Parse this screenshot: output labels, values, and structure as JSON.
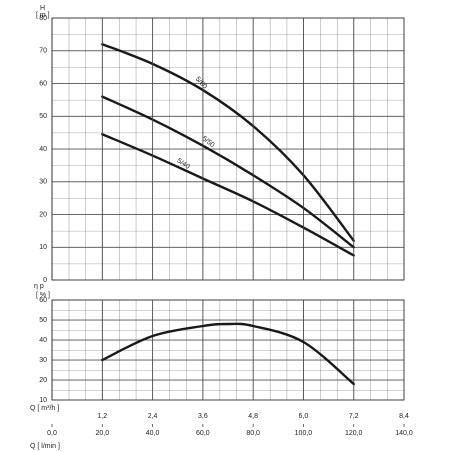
{
  "chart_data": [
    {
      "type": "line",
      "ylabel": "H",
      "yunit": "[ m ]",
      "x": [
        1.2,
        2.4,
        3.6,
        4.8,
        6.0,
        7.2
      ],
      "xlim": [
        0,
        8.4
      ],
      "ylim": [
        0,
        80
      ],
      "yticks": [
        0,
        10,
        20,
        30,
        40,
        50,
        60,
        70,
        80
      ],
      "series": [
        {
          "name": "5/60",
          "color": "#1a1a1a",
          "values": [
            72,
            66,
            58,
            47,
            32,
            12
          ]
        },
        {
          "name": "5/50",
          "color": "#1a1a1a",
          "values": [
            56,
            49,
            41,
            32,
            22,
            10
          ]
        },
        {
          "name": "5/40",
          "color": "#1a1a1a",
          "values": [
            44.5,
            38,
            31,
            24,
            16,
            7.5
          ]
        }
      ]
    },
    {
      "type": "line",
      "ylabel": "η p",
      "yunit": "[ % ]",
      "x": [
        1.2,
        2.4,
        3.6,
        4.2,
        4.8,
        6.0,
        7.2
      ],
      "xlim": [
        0,
        8.4
      ],
      "ylim": [
        10,
        60
      ],
      "yticks": [
        10,
        20,
        30,
        40,
        50,
        60
      ],
      "series": [
        {
          "color": "#1a1a1a",
          "values": [
            30,
            42,
            47,
            48,
            47,
            39,
            18
          ]
        }
      ],
      "xlabel": "Q [ m³/h ]",
      "xticks": [
        {
          "value": 1.2,
          "label": "1,2"
        },
        {
          "value": 2.4,
          "label": "2,4"
        },
        {
          "value": 3.6,
          "label": "3,6"
        },
        {
          "value": 4.8,
          "label": "4,8"
        },
        {
          "value": 6.0,
          "label": "6,0"
        },
        {
          "value": 7.2,
          "label": "7,2"
        },
        {
          "value": 8.4,
          "label": "8,4"
        }
      ],
      "x2label": "Q [ l/min ]",
      "x2lim": [
        0,
        140
      ],
      "x2ticks": [
        {
          "value": 0,
          "label": "0,0"
        },
        {
          "value": 20,
          "label": "20,0"
        },
        {
          "value": 40,
          "label": "40,0"
        },
        {
          "value": 60,
          "label": "60,0"
        },
        {
          "value": 80,
          "label": "80,0"
        },
        {
          "value": 100,
          "label": "100,0"
        },
        {
          "value": 120,
          "label": "120,0"
        },
        {
          "value": 140,
          "label": "140,0"
        }
      ]
    }
  ]
}
